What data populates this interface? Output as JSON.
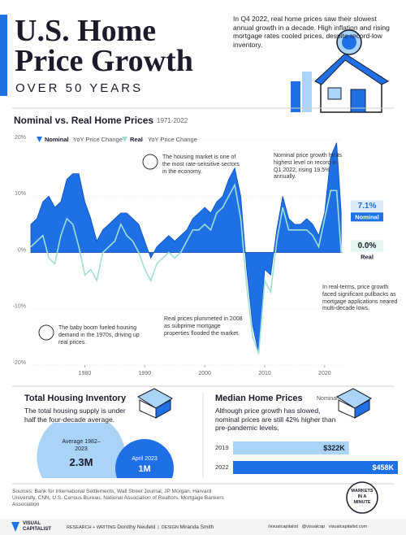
{
  "header": {
    "title_lines": [
      "U.S. Home",
      "Price Growth"
    ],
    "subtitle": "OVER 50 YEARS",
    "intro": "In Q4 2022, real home prices saw their slowest annual growth in a decade. High inflation and rising mortgage rates cooled prices, despite record-low inventory."
  },
  "chart_data": [
    {
      "type": "area",
      "title": "Nominal vs. Real Home Prices",
      "subtitle": "1971-2022",
      "legend_suffix": "YoY Price Change",
      "x": [
        1971,
        1972,
        1973,
        1974,
        1975,
        1976,
        1977,
        1978,
        1979,
        1980,
        1981,
        1982,
        1983,
        1984,
        1985,
        1986,
        1987,
        1988,
        1989,
        1990,
        1991,
        1992,
        1993,
        1994,
        1995,
        1996,
        1997,
        1998,
        1999,
        2000,
        2001,
        2002,
        2003,
        2004,
        2005,
        2006,
        2007,
        2008,
        2009,
        2010,
        2011,
        2012,
        2013,
        2014,
        2015,
        2016,
        2017,
        2018,
        2019,
        2020,
        2021,
        2022,
        2022.75
      ],
      "series": [
        {
          "name": "Nominal",
          "color": "#1f6fe5",
          "end_label": "7.1%",
          "values": [
            5,
            6,
            9,
            10,
            8,
            9,
            13,
            14,
            14,
            9,
            6,
            2,
            4,
            5,
            6,
            7,
            7,
            6,
            5,
            2,
            -1,
            1,
            2,
            3,
            2,
            3,
            4,
            6,
            7,
            8,
            7,
            9,
            10,
            13,
            15,
            10,
            -3,
            -13,
            -18,
            -3,
            -4,
            4,
            10,
            6,
            5,
            5,
            6,
            5,
            3,
            7,
            17,
            19.5,
            7.1
          ]
        },
        {
          "name": "Real",
          "color": "#9fe0d4",
          "end_label": "0.0%",
          "values": [
            1,
            2,
            3,
            -1,
            -2,
            3,
            6,
            5,
            1,
            -4,
            -3,
            -5,
            0,
            1,
            2,
            5,
            3,
            2,
            0,
            -3,
            -5,
            -2,
            -1,
            0,
            -1,
            0,
            2,
            4,
            4,
            5,
            4,
            7,
            8,
            10,
            12,
            6,
            -6,
            -15,
            -18,
            -5,
            -7,
            2,
            8,
            4,
            4,
            4,
            4,
            3,
            1,
            6,
            11,
            11,
            0
          ]
        }
      ],
      "xlim": [
        1971,
        2023
      ],
      "xticks": [
        1980,
        1990,
        2000,
        2010,
        2020
      ],
      "ylim": [
        -20,
        20
      ],
      "yticks": [
        {
          "value": 20,
          "label": "20%"
        },
        {
          "value": 10,
          "label": "10%"
        },
        {
          "value": 0,
          "label": "0%"
        },
        {
          "value": -10,
          "label": "-10%"
        },
        {
          "value": -20,
          "label": "-20%"
        }
      ],
      "grid": true,
      "annotations": [
        "The housing market is one of the most rate-sensitive sectors in the economy.",
        "Nominal price growth hit its highest level on record in Q1 2022, rising 19.5% annually.",
        "In real-terms, price growth faced significant pullbacks as mortgage applications neared multi-decade lows.",
        "The baby boom fueled housing demand in the 1970s, driving up real prices.",
        "Real prices plummeted in 2008 as subprime mortgage properties flooded the market."
      ]
    },
    {
      "type": "bubble",
      "title": "Total Housing Inventory",
      "text": "The total housing supply is under half the four-decade average.",
      "categories": [
        "Average 1982–2023",
        "April 2023"
      ],
      "values": [
        2.3,
        1
      ],
      "value_labels": [
        "2.3M",
        "1M"
      ],
      "colors": [
        "#a9d4f7",
        "#1f6fe5"
      ]
    },
    {
      "type": "hbar",
      "title": "Median Home Prices",
      "subtitle": "Nominal",
      "text": "Although price growth has slowed, nominal prices are still 42% higher than pre-pandemic levels.",
      "categories": [
        "2019",
        "2022"
      ],
      "values": [
        322,
        458
      ],
      "value_labels": [
        "$322K",
        "$458K"
      ],
      "colors": [
        "#a9d4f7",
        "#1f6fe5"
      ]
    }
  ],
  "footer": {
    "sources": "Sources: Bank for International Settlements, Wall Street Journal, JP Morgan, Harvard University, CNN, U.S. Census Bureau, National Association of Realtors, Mortgage Bankers Association",
    "brand_lines": [
      "VISUAL",
      "CAPITALIST"
    ],
    "research_label": "RESEARCH + WRITING",
    "research_name": "Dorothy Neufeld",
    "design_label": "DESIGN",
    "design_name": "Miranda Smith",
    "series_badge": [
      "MARKETS",
      "IN A",
      "MINUTE"
    ],
    "social": [
      "/visualcapitalist",
      "@visualcap",
      "visualcapitalist.com"
    ]
  }
}
